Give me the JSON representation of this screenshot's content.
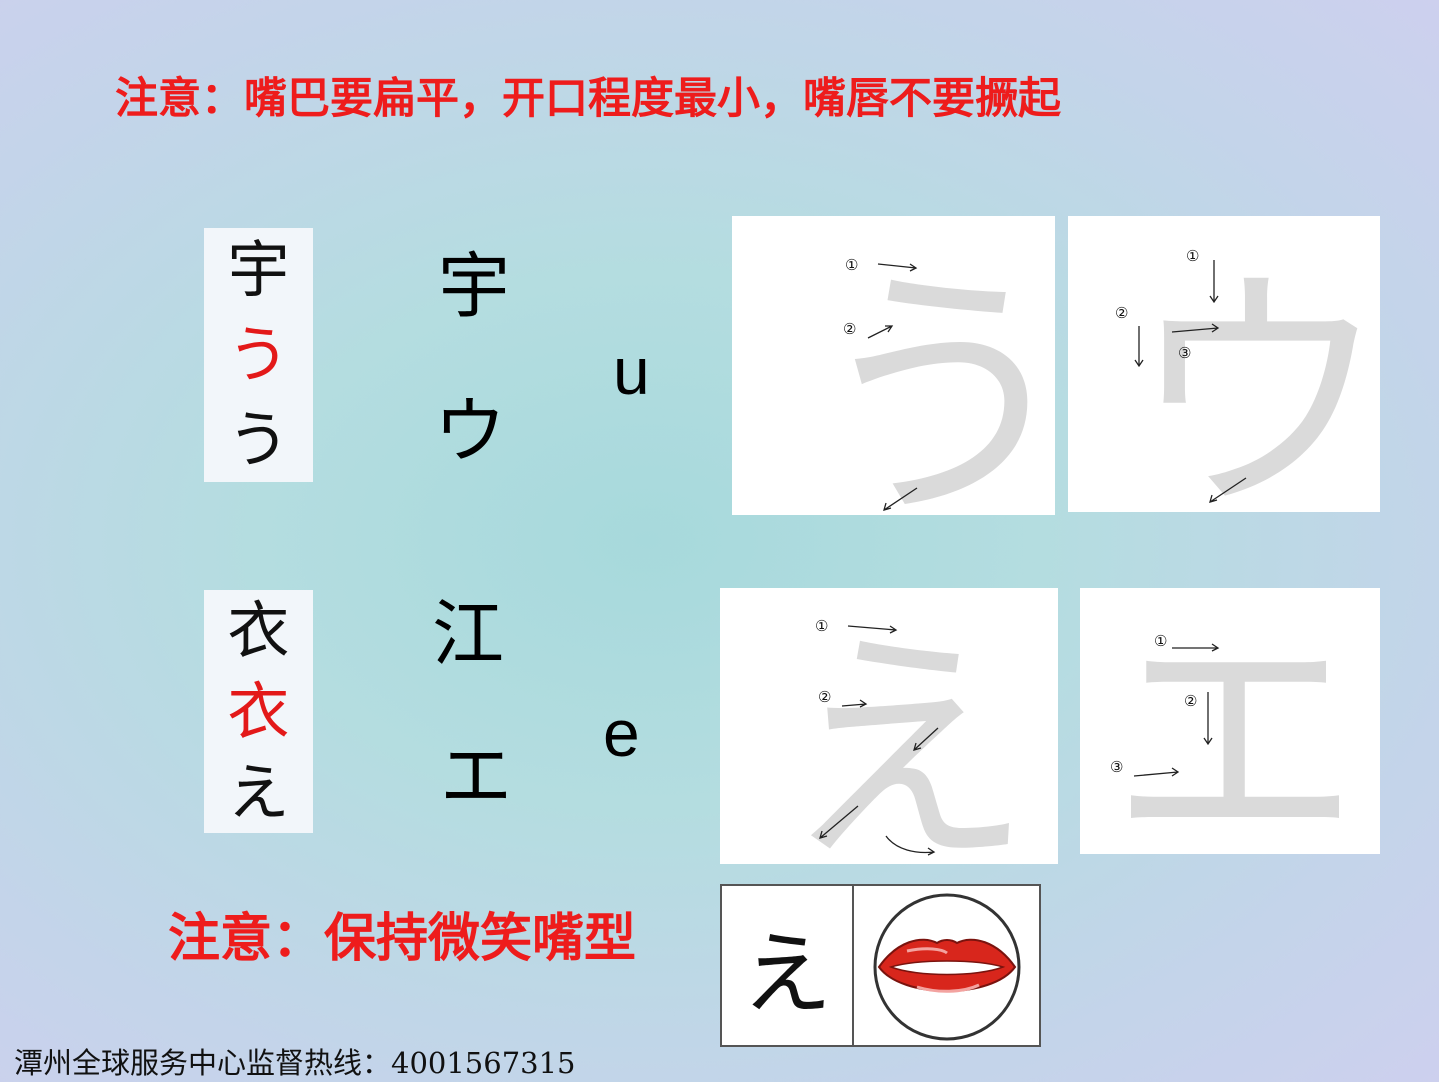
{
  "notes": {
    "top": "注意：嘴巴要扁平，开口程度最小，嘴唇不要撅起",
    "bottom": "注意：保持微笑嘴型"
  },
  "rows": [
    {
      "origin": [
        "宇",
        "う",
        "う"
      ],
      "kanji": "宇",
      "katakana": "ウ",
      "romaji": "u",
      "hiragana_big": "う",
      "katakana_big": "ウ",
      "stroke_numbers_hira": [
        "①",
        "②"
      ],
      "stroke_numbers_kata": [
        "①",
        "②",
        "③"
      ]
    },
    {
      "origin": [
        "衣",
        "衣",
        "え"
      ],
      "kanji": "江",
      "katakana": "エ",
      "romaji": "e",
      "hiragana_big": "え",
      "katakana_big": "エ",
      "stroke_numbers_hira": [
        "①",
        "②"
      ],
      "stroke_numbers_kata": [
        "①",
        "②",
        "③"
      ]
    }
  ],
  "mouth": {
    "kana": "え"
  },
  "footer": {
    "hotline": "潭州全球服务中心监督热线：4001567315"
  },
  "colors": {
    "note_red": "#ee1c1c",
    "origin_mid_red": "#e31919",
    "lip_red": "#d8261c"
  }
}
